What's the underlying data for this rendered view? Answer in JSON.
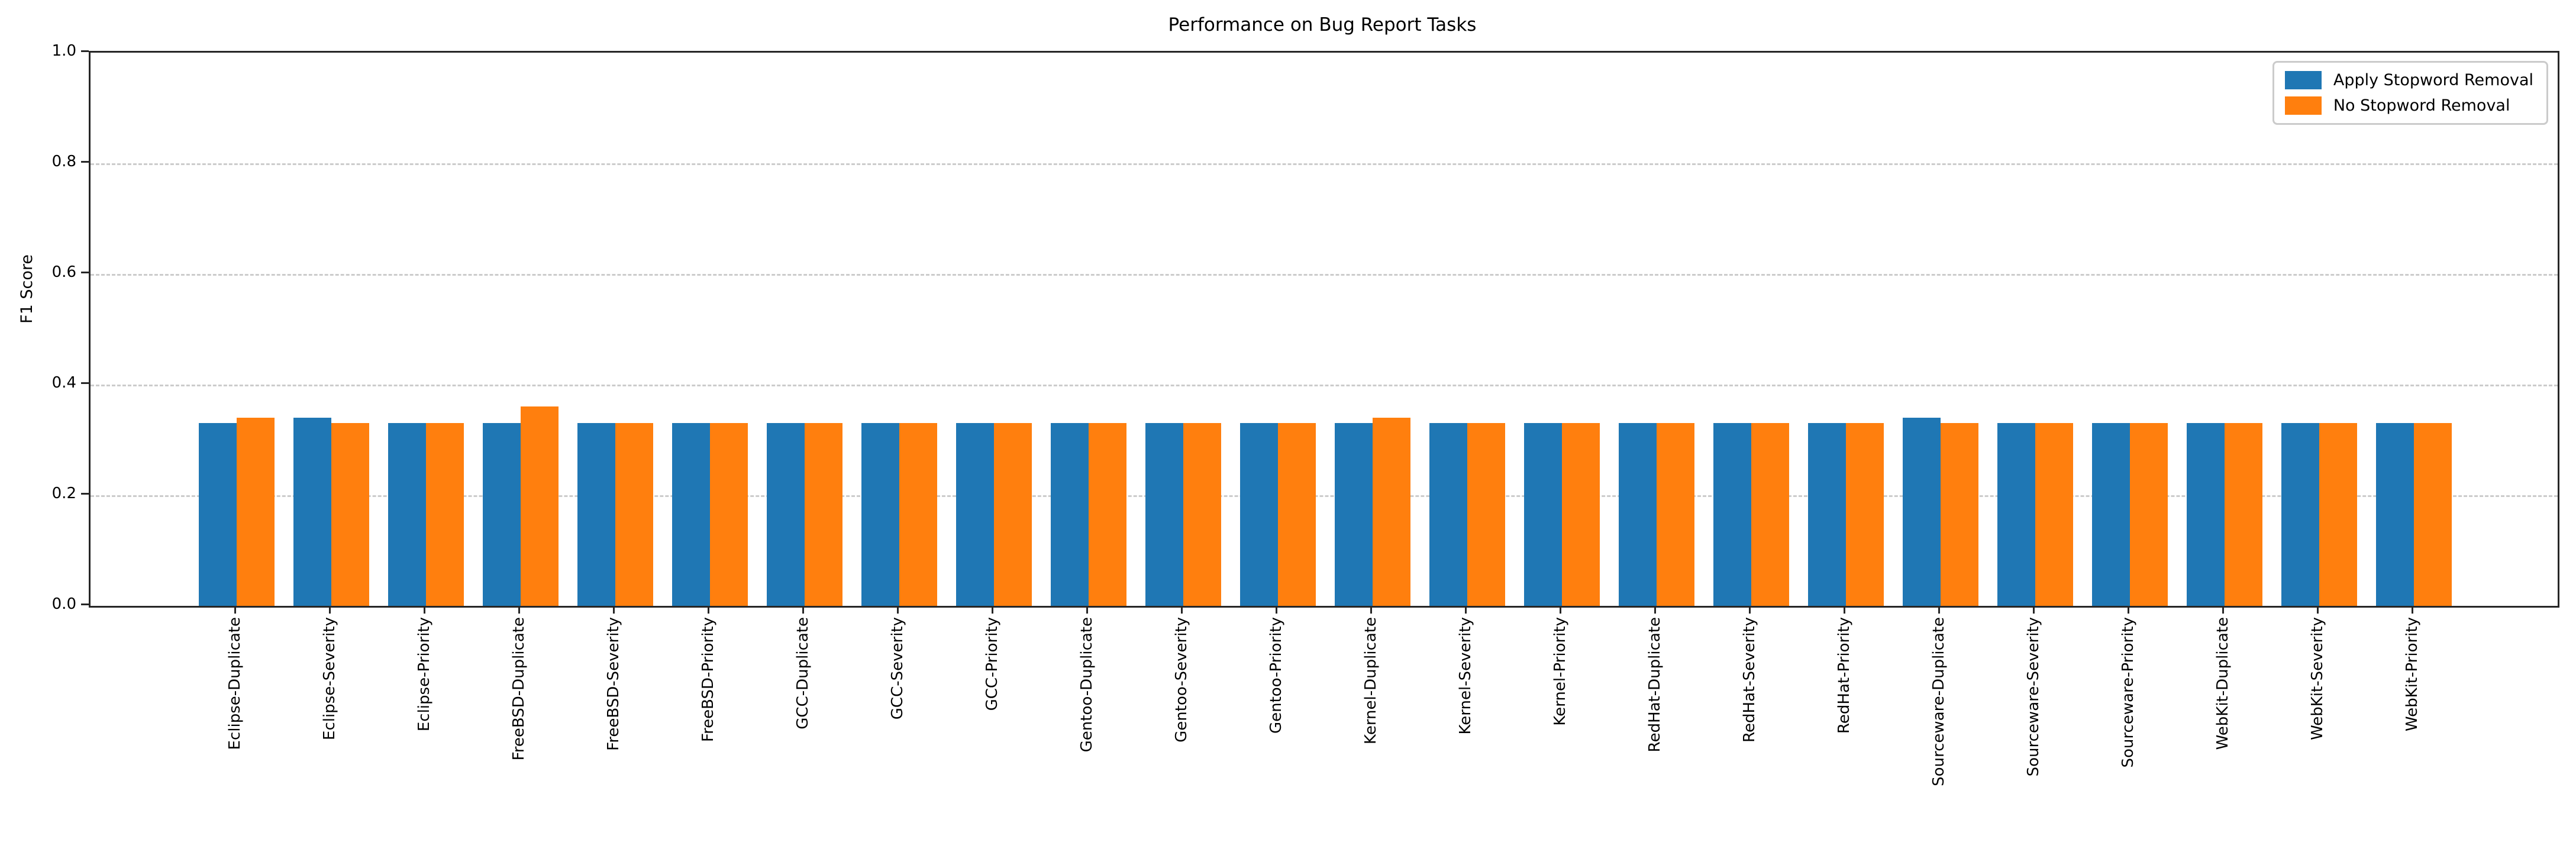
{
  "chart_data": {
    "type": "bar",
    "title": "Performance on Bug Report Tasks",
    "xlabel": "",
    "ylabel": "F1 Score",
    "ylim": [
      0.0,
      1.0
    ],
    "yticks": [
      0.0,
      0.2,
      0.4,
      0.6,
      0.8,
      1.0
    ],
    "grid": "horizontal dashed",
    "legend_position": "upper right",
    "categories": [
      "Eclipse-Duplicate",
      "Eclipse-Severity",
      "Eclipse-Priority",
      "FreeBSD-Duplicate",
      "FreeBSD-Severity",
      "FreeBSD-Priority",
      "GCC-Duplicate",
      "GCC-Severity",
      "GCC-Priority",
      "Gentoo-Duplicate",
      "Gentoo-Severity",
      "Gentoo-Priority",
      "Kernel-Duplicate",
      "Kernel-Severity",
      "Kernel-Priority",
      "RedHat-Duplicate",
      "RedHat-Severity",
      "RedHat-Priority",
      "Sourceware-Duplicate",
      "Sourceware-Severity",
      "Sourceware-Priority",
      "WebKit-Duplicate",
      "WebKit-Severity",
      "WebKit-Priority"
    ],
    "series": [
      {
        "name": "Apply Stopword Removal",
        "color": "#1f77b4",
        "values": [
          0.33,
          0.34,
          0.33,
          0.33,
          0.33,
          0.33,
          0.33,
          0.33,
          0.33,
          0.33,
          0.33,
          0.33,
          0.33,
          0.33,
          0.33,
          0.33,
          0.33,
          0.33,
          0.34,
          0.33,
          0.33,
          0.33,
          0.33,
          0.33
        ]
      },
      {
        "name": "No Stopword Removal",
        "color": "#ff7f0e",
        "values": [
          0.34,
          0.33,
          0.33,
          0.36,
          0.33,
          0.33,
          0.33,
          0.33,
          0.33,
          0.33,
          0.33,
          0.33,
          0.34,
          0.33,
          0.33,
          0.33,
          0.33,
          0.33,
          0.33,
          0.33,
          0.33,
          0.33,
          0.33,
          0.33
        ]
      }
    ]
  }
}
